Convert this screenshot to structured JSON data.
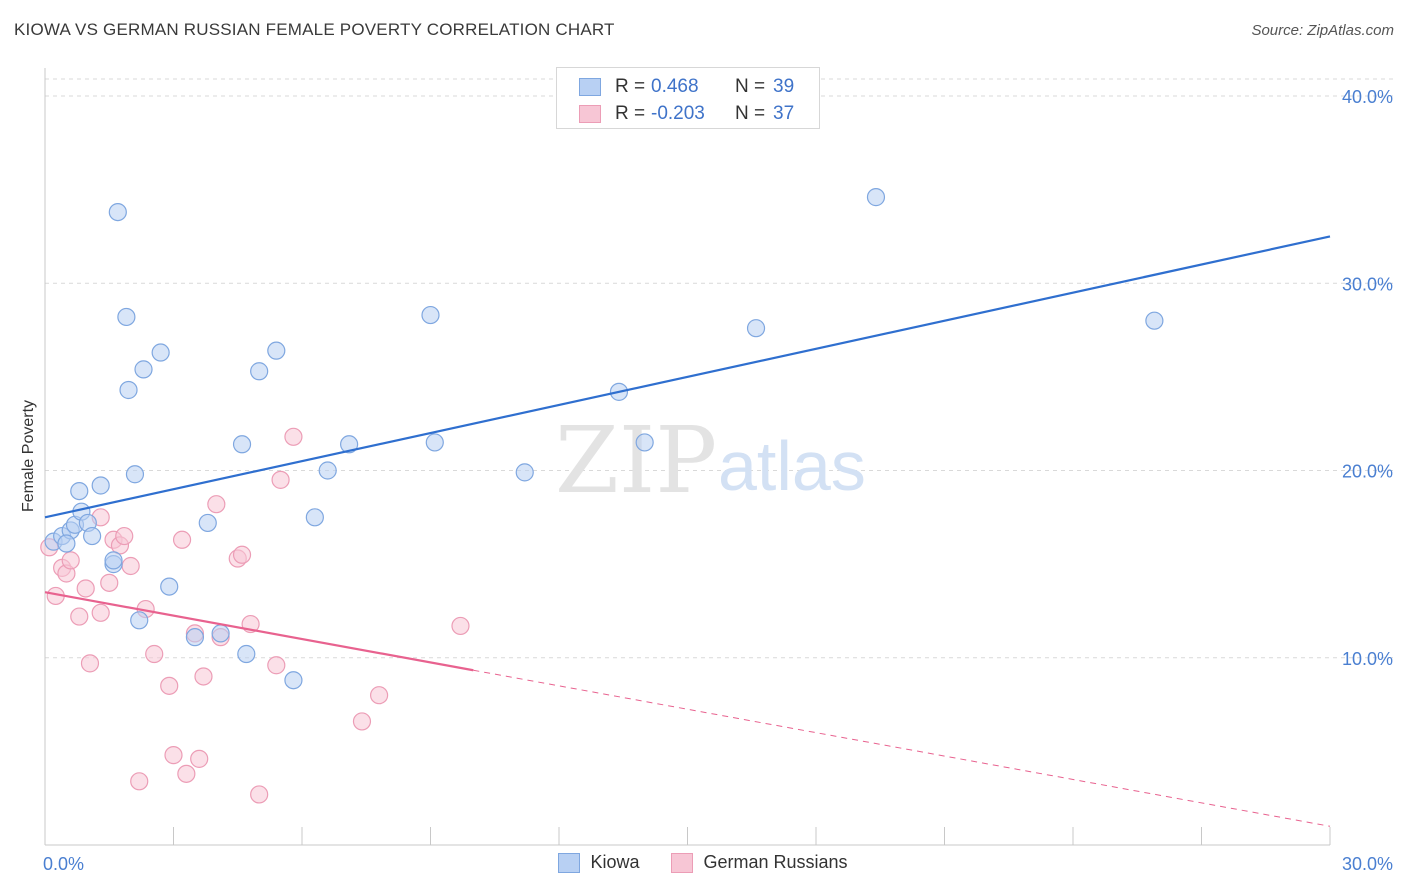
{
  "header": {
    "title": "KIOWA VS GERMAN RUSSIAN FEMALE POVERTY CORRELATION CHART",
    "source": "Source: ZipAtlas.com"
  },
  "watermark": {
    "zip": "ZIP",
    "atlas": "atlas"
  },
  "legend": {
    "rows": [
      {
        "r_label": "R =",
        "r_value": "0.468",
        "n_label": "N =",
        "n_value": "39"
      },
      {
        "r_label": "R =",
        "r_value": "-0.203",
        "n_label": "N =",
        "n_value": "37"
      }
    ]
  },
  "bottom_legend": {
    "series1": "Kiowa",
    "series2": "German Russians"
  },
  "colors": {
    "kiowa_fill": "#b8d0f3",
    "kiowa_stroke": "#7fa7e0",
    "kiowa_line": "#2f6fcf",
    "gr_fill": "#f7c6d5",
    "gr_stroke": "#ec9db6",
    "gr_line": "#e8628f",
    "tick_text": "#4a7fd1",
    "grid": "#d9d9d9"
  },
  "chart_data": {
    "type": "scatter",
    "title": "KIOWA VS GERMAN RUSSIAN FEMALE POVERTY CORRELATION CHART",
    "xlabel": "",
    "ylabel": "Female Poverty",
    "xlim": [
      0,
      30
    ],
    "ylim": [
      0,
      41
    ],
    "x_tick_labels": [
      "0.0%",
      "30.0%"
    ],
    "y_ticks": [
      10,
      20,
      30,
      40
    ],
    "y_tick_labels": [
      "10.0%",
      "20.0%",
      "30.0%",
      "40.0%"
    ],
    "grid": true,
    "series": [
      {
        "name": "Kiowa",
        "r": 0.468,
        "n": 39,
        "trend": {
          "x": [
            0,
            30
          ],
          "y": [
            17.5,
            32.5
          ],
          "dashed_from": null
        },
        "points": [
          [
            0.2,
            16.2
          ],
          [
            0.4,
            16.5
          ],
          [
            0.6,
            16.8
          ],
          [
            0.5,
            16.1
          ],
          [
            0.7,
            17.1
          ],
          [
            0.8,
            18.9
          ],
          [
            0.85,
            17.8
          ],
          [
            1.0,
            17.2
          ],
          [
            1.1,
            16.5
          ],
          [
            1.3,
            19.2
          ],
          [
            1.6,
            15.0
          ],
          [
            1.6,
            15.2
          ],
          [
            1.7,
            33.8
          ],
          [
            1.9,
            28.2
          ],
          [
            1.95,
            24.3
          ],
          [
            2.1,
            19.8
          ],
          [
            2.2,
            12.0
          ],
          [
            2.3,
            25.4
          ],
          [
            2.7,
            26.3
          ],
          [
            2.9,
            13.8
          ],
          [
            3.5,
            11.1
          ],
          [
            3.8,
            17.2
          ],
          [
            4.1,
            11.3
          ],
          [
            4.6,
            21.4
          ],
          [
            4.7,
            10.2
          ],
          [
            5.0,
            25.3
          ],
          [
            5.4,
            26.4
          ],
          [
            5.8,
            8.8
          ],
          [
            6.3,
            17.5
          ],
          [
            6.6,
            20.0
          ],
          [
            7.1,
            21.4
          ],
          [
            9.0,
            28.3
          ],
          [
            9.1,
            21.5
          ],
          [
            11.2,
            19.9
          ],
          [
            13.4,
            24.2
          ],
          [
            14.0,
            21.5
          ],
          [
            16.6,
            27.6
          ],
          [
            19.4,
            34.6
          ],
          [
            25.9,
            28.0
          ]
        ]
      },
      {
        "name": "German Russians",
        "r": -0.203,
        "n": 37,
        "trend": {
          "x": [
            0,
            30
          ],
          "y": [
            13.5,
            1.0
          ],
          "dashed_from": 10.0
        },
        "points": [
          [
            0.1,
            15.9
          ],
          [
            0.25,
            13.3
          ],
          [
            0.4,
            14.8
          ],
          [
            0.5,
            14.5
          ],
          [
            0.6,
            15.2
          ],
          [
            0.8,
            12.2
          ],
          [
            0.95,
            13.7
          ],
          [
            1.05,
            9.7
          ],
          [
            1.3,
            12.4
          ],
          [
            1.3,
            17.5
          ],
          [
            1.5,
            14.0
          ],
          [
            1.6,
            16.3
          ],
          [
            1.75,
            16.0
          ],
          [
            1.85,
            16.5
          ],
          [
            2.0,
            14.9
          ],
          [
            2.2,
            3.4
          ],
          [
            2.35,
            12.6
          ],
          [
            2.55,
            10.2
          ],
          [
            2.9,
            8.5
          ],
          [
            3.0,
            4.8
          ],
          [
            3.2,
            16.3
          ],
          [
            3.3,
            3.8
          ],
          [
            3.5,
            11.3
          ],
          [
            3.6,
            4.6
          ],
          [
            3.7,
            9.0
          ],
          [
            4.0,
            18.2
          ],
          [
            4.1,
            11.1
          ],
          [
            4.5,
            15.3
          ],
          [
            4.6,
            15.5
          ],
          [
            4.8,
            11.8
          ],
          [
            5.0,
            2.7
          ],
          [
            5.4,
            9.6
          ],
          [
            5.5,
            19.5
          ],
          [
            5.8,
            21.8
          ],
          [
            7.4,
            6.6
          ],
          [
            7.8,
            8.0
          ],
          [
            9.7,
            11.7
          ]
        ]
      }
    ]
  }
}
